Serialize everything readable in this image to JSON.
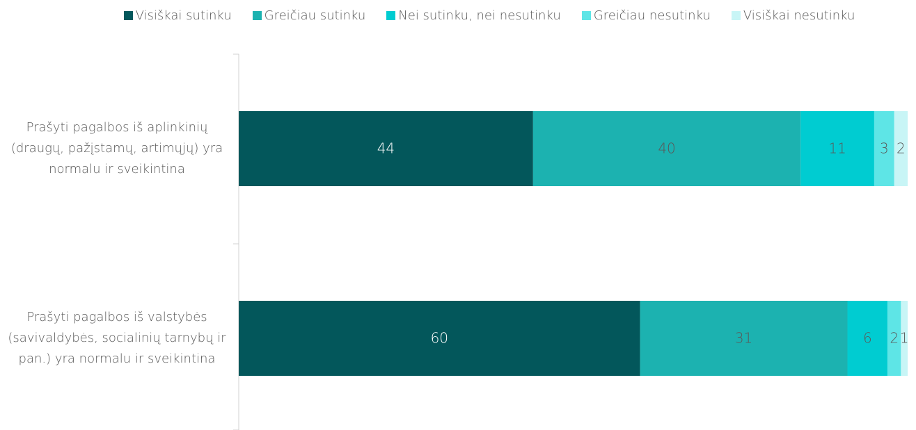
{
  "chart_data": {
    "type": "stacked-bar-horizontal",
    "categories": [
      "Prašyti pagalbos iš aplinkinių (draugų, pažįstamų, artimųjų) yra normalu ir sveikintina",
      "Prašyti pagalbos iš valstybės (savivaldybės, socialinių tarnybų ir pan.) yra normalu ir sveikintina"
    ],
    "series": [
      {
        "name": "Visiškai sutinku",
        "color": "#03575b",
        "values": [
          44,
          60
        ]
      },
      {
        "name": "Greičiau sutinku",
        "color": "#1cb2b0",
        "values": [
          40,
          31
        ]
      },
      {
        "name": "Nei sutinku, nei nesutinku",
        "color": "#00ccd1",
        "values": [
          11,
          6
        ]
      },
      {
        "name": "Greičiau nesutinku",
        "color": "#5ee5e6",
        "values": [
          3,
          2
        ]
      },
      {
        "name": "Visiškai nesutinku",
        "color": "#c8f5f6",
        "values": [
          2,
          1
        ]
      }
    ],
    "xlim": [
      0,
      100
    ],
    "legend": "top"
  }
}
